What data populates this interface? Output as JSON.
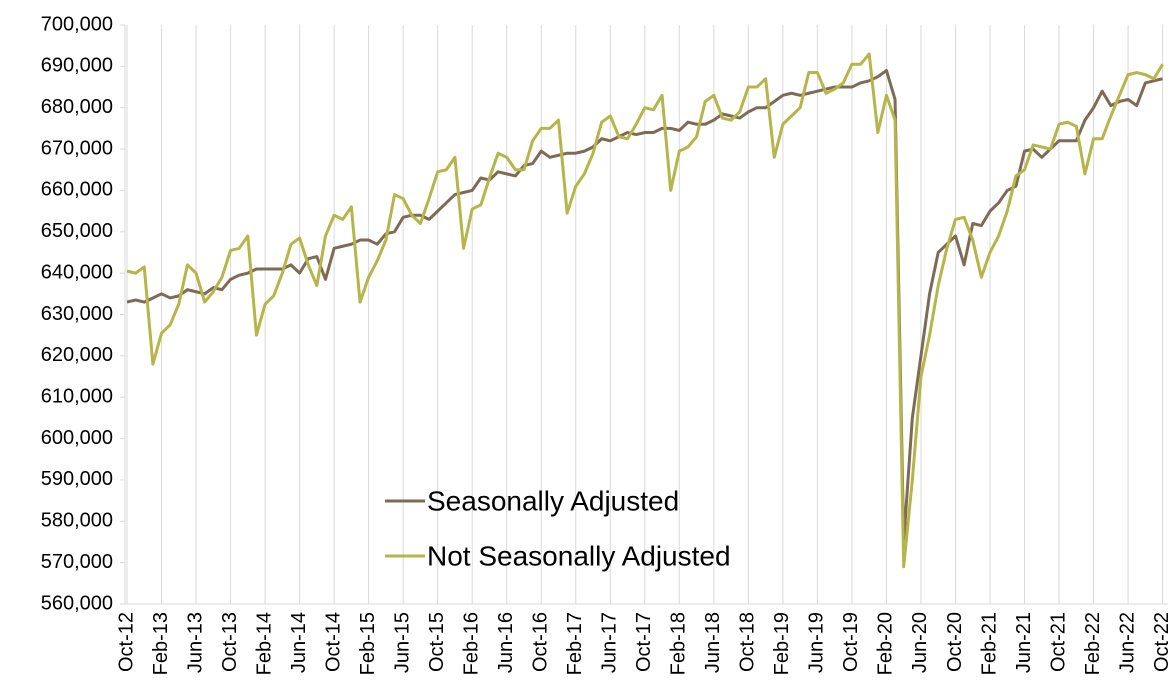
{
  "chart_data": {
    "type": "line",
    "categories": [
      "Oct-12",
      null,
      null,
      null,
      "Feb-13",
      null,
      null,
      null,
      "Jun-13",
      null,
      null,
      null,
      "Oct-13",
      null,
      null,
      null,
      "Feb-14",
      null,
      null,
      null,
      "Jun-14",
      null,
      null,
      null,
      "Oct-14",
      null,
      null,
      null,
      "Feb-15",
      null,
      null,
      null,
      "Jun-15",
      null,
      null,
      null,
      "Oct-15",
      null,
      null,
      null,
      "Feb-16",
      null,
      null,
      null,
      "Jun-16",
      null,
      null,
      null,
      "Oct-16",
      null,
      null,
      null,
      "Feb-17",
      null,
      null,
      null,
      "Jun-17",
      null,
      null,
      null,
      "Oct-17",
      null,
      null,
      null,
      "Feb-18",
      null,
      null,
      null,
      "Jun-18",
      null,
      null,
      null,
      "Oct-18",
      null,
      null,
      null,
      "Feb-19",
      null,
      null,
      null,
      "Jun-19",
      null,
      null,
      null,
      "Oct-19",
      null,
      null,
      null,
      "Feb-20",
      null,
      null,
      null,
      "Jun-20",
      null,
      null,
      null,
      "Oct-20",
      null,
      null,
      null,
      "Feb-21",
      null,
      null,
      null,
      "Jun-21",
      null,
      null,
      null,
      "Oct-21",
      null,
      null,
      null,
      "Feb-22",
      null,
      null,
      null,
      "Jun-22",
      null,
      null,
      null,
      "Oct-22"
    ],
    "series": [
      {
        "name": "Seasonally Adjusted",
        "color": "#7f6a55",
        "values": [
          633000,
          633500,
          633000,
          634000,
          635000,
          634000,
          634500,
          636000,
          635500,
          635000,
          636500,
          636000,
          638500,
          639500,
          640000,
          641000,
          641000,
          641000,
          641000,
          642000,
          640000,
          643500,
          644000,
          638500,
          646000,
          646500,
          647000,
          648000,
          648000,
          647000,
          649500,
          650000,
          653500,
          654000,
          654000,
          653000,
          655000,
          657000,
          659000,
          659500,
          660000,
          663000,
          662500,
          664500,
          664000,
          663500,
          666000,
          666500,
          669500,
          668000,
          668500,
          669000,
          669000,
          669500,
          670500,
          672500,
          672000,
          673000,
          674000,
          673500,
          674000,
          674000,
          675000,
          675000,
          674500,
          676500,
          676000,
          676000,
          677000,
          678500,
          678000,
          677500,
          679000,
          680000,
          680000,
          681500,
          683000,
          683500,
          683000,
          683500,
          684000,
          684500,
          685000,
          685000,
          685000,
          686000,
          686500,
          687500,
          689000,
          682000,
          575000,
          605000,
          620000,
          635000,
          645000,
          647000,
          649000,
          642000,
          652000,
          651500,
          655000,
          657000,
          660000,
          661000,
          669500,
          670000,
          668000,
          670000,
          672000,
          672000,
          672000,
          677000,
          680000,
          684000,
          680500,
          681500,
          682000,
          680500,
          686000,
          686500,
          687000
        ]
      },
      {
        "name": "Not Seasonally Adjusted",
        "color": "#b5b54a",
        "values": [
          640500,
          640000,
          641500,
          618000,
          625500,
          627500,
          632500,
          642000,
          640000,
          633000,
          635500,
          639000,
          645500,
          646000,
          649000,
          625000,
          632500,
          634500,
          640000,
          647000,
          648500,
          642000,
          637000,
          649000,
          654000,
          653000,
          656000,
          633000,
          639000,
          643000,
          648000,
          659000,
          658000,
          654000,
          652000,
          658000,
          664500,
          665000,
          668000,
          646000,
          655500,
          656500,
          663000,
          669000,
          668000,
          665000,
          665000,
          672000,
          675000,
          675000,
          677000,
          654500,
          661000,
          664000,
          669000,
          676500,
          678000,
          673000,
          672500,
          676000,
          680000,
          679500,
          683000,
          660000,
          669500,
          670500,
          673000,
          681500,
          683000,
          677500,
          677000,
          679000,
          685000,
          685000,
          687000,
          668000,
          676000,
          678000,
          680000,
          688500,
          688500,
          683500,
          684500,
          686000,
          690500,
          690500,
          693000,
          674000,
          683000,
          677000,
          569000,
          590000,
          615000,
          625000,
          637000,
          646000,
          653000,
          653500,
          648000,
          639000,
          645000,
          649000,
          655000,
          663500,
          665000,
          671000,
          670500,
          670000,
          676000,
          676500,
          675500,
          664000,
          672500,
          672500,
          678000,
          683000,
          688000,
          688500,
          688000,
          687000,
          690500
        ]
      }
    ],
    "ylim": [
      560000,
      700000
    ],
    "yticks": [
      {
        "value": 560000,
        "label": "560,000"
      },
      {
        "value": 570000,
        "label": "570,000"
      },
      {
        "value": 580000,
        "label": "580,000"
      },
      {
        "value": 590000,
        "label": "590,000"
      },
      {
        "value": 600000,
        "label": "600,000"
      },
      {
        "value": 610000,
        "label": "610,000"
      },
      {
        "value": 620000,
        "label": "620,000"
      },
      {
        "value": 630000,
        "label": "630,000"
      },
      {
        "value": 640000,
        "label": "640,000"
      },
      {
        "value": 650000,
        "label": "650,000"
      },
      {
        "value": 660000,
        "label": "660,000"
      },
      {
        "value": 670000,
        "label": "670,000"
      },
      {
        "value": 680000,
        "label": "680,000"
      },
      {
        "value": 690000,
        "label": "690,000"
      },
      {
        "value": 700000,
        "label": "700,000"
      }
    ],
    "grid": true
  }
}
